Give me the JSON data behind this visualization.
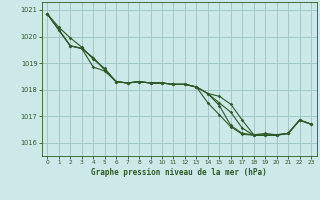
{
  "title": "Graphe pression niveau de la mer (hPa)",
  "bg_color": "#cde8e8",
  "grid_color": "#a0c8c8",
  "line_color": "#2d5a27",
  "xlim": [
    -0.5,
    23.5
  ],
  "ylim": [
    1015.5,
    1021.3
  ],
  "yticks": [
    1016,
    1017,
    1018,
    1019,
    1020,
    1021
  ],
  "xticks": [
    0,
    1,
    2,
    3,
    4,
    5,
    6,
    7,
    8,
    9,
    10,
    11,
    12,
    13,
    14,
    15,
    16,
    17,
    18,
    19,
    20,
    21,
    22,
    23
  ],
  "series": [
    [
      1020.85,
      1020.35,
      1019.95,
      1019.6,
      1019.15,
      1018.8,
      1018.3,
      1018.25,
      1018.3,
      1018.25,
      1018.25,
      1018.2,
      1018.2,
      1018.1,
      1017.85,
      1017.4,
      1016.65,
      1016.35,
      1016.3,
      1016.35,
      1016.3,
      1016.35,
      1016.85,
      1016.7
    ],
    [
      1020.85,
      1020.25,
      1019.65,
      1019.55,
      1019.2,
      1018.75,
      1018.3,
      1018.25,
      1018.3,
      1018.25,
      1018.25,
      1018.2,
      1018.2,
      1018.1,
      1017.85,
      1017.75,
      1017.45,
      1016.85,
      1016.3,
      1016.3,
      1016.3,
      1016.35,
      1016.85,
      1016.7
    ],
    [
      1020.85,
      1020.25,
      1019.65,
      1019.55,
      1018.85,
      1018.7,
      1018.3,
      1018.25,
      1018.3,
      1018.25,
      1018.25,
      1018.2,
      1018.2,
      1018.1,
      1017.5,
      1017.05,
      1016.6,
      1016.32,
      1016.28,
      1016.28,
      1016.28,
      1016.35,
      1016.85,
      1016.7
    ],
    [
      1020.85,
      1020.25,
      1019.65,
      1019.55,
      1019.2,
      1018.75,
      1018.3,
      1018.25,
      1018.3,
      1018.25,
      1018.25,
      1018.2,
      1018.2,
      1018.1,
      1017.85,
      1017.5,
      1017.15,
      1016.55,
      1016.28,
      1016.28,
      1016.28,
      1016.35,
      1016.85,
      1016.7
    ]
  ]
}
